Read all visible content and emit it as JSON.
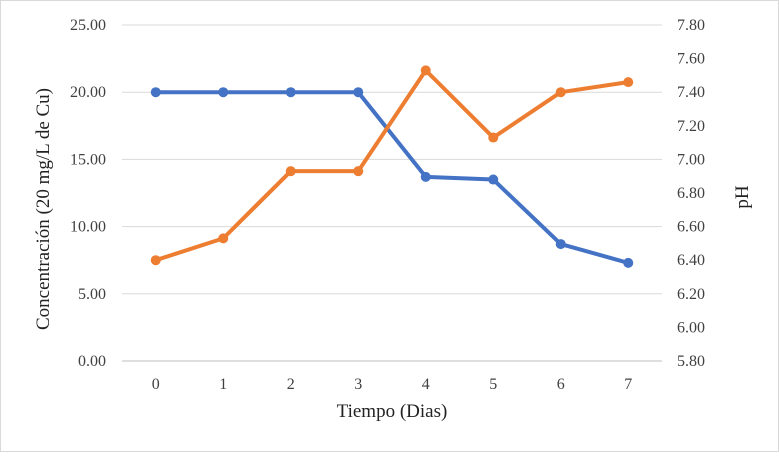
{
  "chart_data": {
    "type": "line",
    "xlabel": "Tiempo (Dias)",
    "ylabel": "Concentración  (20 mg/L de Cu)",
    "y2label": "pH",
    "x": [
      0,
      1,
      2,
      3,
      4,
      5,
      6,
      7
    ],
    "x_tick_labels": [
      "0",
      "1",
      "2",
      "3",
      "4",
      "5",
      "6",
      "7"
    ],
    "ylim": [
      0,
      25
    ],
    "y_ticks": [
      0,
      5,
      10,
      15,
      20,
      25
    ],
    "y_tick_labels": [
      "0.00",
      "5.00",
      "10.00",
      "15.00",
      "20.00",
      "25.00"
    ],
    "y2lim": [
      5.8,
      7.8
    ],
    "y2_ticks": [
      5.8,
      6.0,
      6.2,
      6.4,
      6.6,
      6.8,
      7.0,
      7.2,
      7.4,
      7.6,
      7.8
    ],
    "y2_tick_labels": [
      "5.80",
      "6.00",
      "6.20",
      "6.40",
      "6.60",
      "6.80",
      "7.00",
      "7.20",
      "7.40",
      "7.60",
      "7.80"
    ],
    "grid": "horizontal",
    "legend": "none",
    "series": [
      {
        "axis": "left",
        "color": "#4472c4",
        "values": [
          20.0,
          20.0,
          20.0,
          20.0,
          13.7,
          13.5,
          8.7,
          7.3
        ]
      },
      {
        "axis": "right",
        "color": "#ed7d31",
        "values": [
          6.4,
          6.53,
          6.93,
          6.93,
          7.53,
          7.13,
          7.4,
          7.46
        ]
      }
    ]
  }
}
